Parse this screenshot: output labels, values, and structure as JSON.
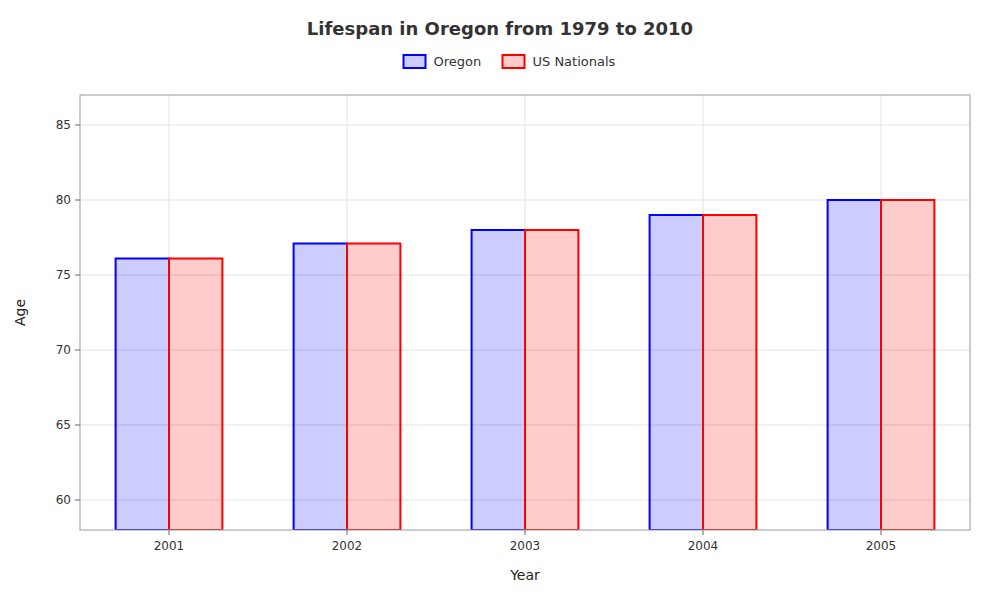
{
  "chart_data": {
    "type": "bar",
    "title": "Lifespan in Oregon from 1979 to 2010",
    "xlabel": "Year",
    "ylabel": "Age",
    "categories": [
      "2001",
      "2002",
      "2003",
      "2004",
      "2005"
    ],
    "series": [
      {
        "name": "Oregon",
        "color": "#0000FF",
        "values": [
          76.1,
          77.1,
          78.0,
          79.0,
          80.0
        ]
      },
      {
        "name": "US Nationals",
        "color": "#FF0000",
        "values": [
          76.1,
          77.1,
          78.0,
          79.0,
          80.0
        ]
      }
    ],
    "ylim": [
      58,
      87
    ],
    "yticks": [
      60,
      65,
      70,
      75,
      80,
      85
    ],
    "grid": true,
    "legend": "top"
  }
}
